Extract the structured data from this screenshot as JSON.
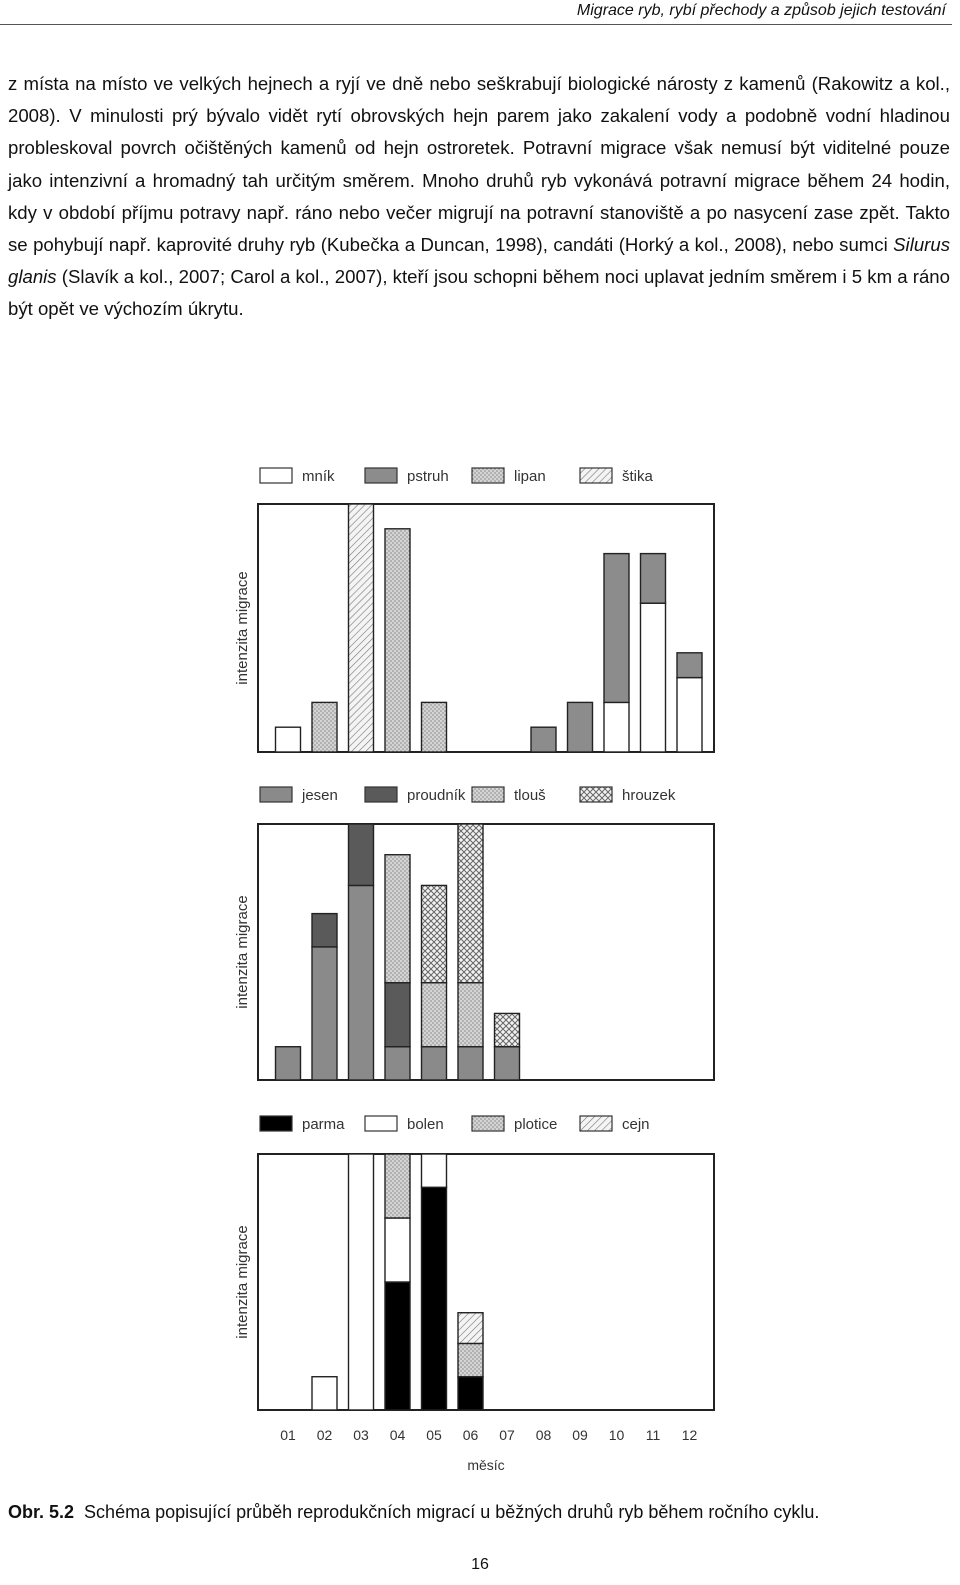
{
  "header": {
    "running_title": "Migrace ryb, rybí přechody a způsob jejich testování"
  },
  "body": {
    "para_start": "z místa na místo ve velkých hejnech a ryjí ve dně nebo seškrabují biologické nárosty z kamenů (Rakowitz a kol., 2008). V minulosti prý bývalo vidět rytí obrovských hejn parem jako zakalení vody a podobně vodní hladinou probleskoval povrch očištěných kamenů od hejn ostroretek. Potravní migrace však nemusí být viditelné pouze jako intenzivní a hromadný tah určitým směrem. Mnoho druhů ryb vykonává potravní migrace během 24 hodin, kdy v období příjmu potravy např. ráno nebo večer migrují na potravní stanoviště a po nasycení zase zpět. Takto se pohybují např. kaprovité druhy ryb (Kubečka a Duncan, 1998), candáti (Horký a kol., 2008), nebo sumci ",
    "species_italic": "Silurus glanis",
    "para_end": " (Slavík a kol., 2007; Carol a kol., 2007), kteří jsou schopni během noci uplavat jedním směrem i 5 km a ráno být opět ve výchozím úkrytu."
  },
  "chart_data": [
    {
      "type": "bar",
      "stacked": true,
      "ylabel": "intenzita migrace",
      "categories": [
        "01",
        "02",
        "03",
        "04",
        "05",
        "06",
        "07",
        "08",
        "09",
        "10",
        "11",
        "12"
      ],
      "legend": [
        "mník",
        "pstruh",
        "lipan",
        "štika"
      ],
      "series": [
        {
          "name": "mník",
          "values": [
            0.1,
            0,
            0,
            0,
            0,
            0,
            0,
            0,
            0,
            0.2,
            0.6,
            0.3
          ]
        },
        {
          "name": "pstruh",
          "values": [
            0,
            0,
            0,
            0,
            0,
            0,
            0,
            0.1,
            0.2,
            0.6,
            0.2,
            0.1
          ]
        },
        {
          "name": "lipan",
          "values": [
            0,
            0.2,
            0,
            0.9,
            0.2,
            0,
            0,
            0,
            0,
            0,
            0,
            0
          ]
        },
        {
          "name": "štika",
          "values": [
            0,
            0,
            1.0,
            0,
            0,
            0,
            0,
            0,
            0,
            0,
            0,
            0
          ]
        }
      ],
      "legend_placement": "top",
      "grid": false
    },
    {
      "type": "bar",
      "stacked": true,
      "ylabel": "intenzita migrace",
      "categories": [
        "01",
        "02",
        "03",
        "04",
        "05",
        "06",
        "07",
        "08",
        "09",
        "10",
        "11",
        "12"
      ],
      "legend": [
        "jesen",
        "proudník",
        "tlouš",
        "hrouzek"
      ],
      "series": [
        {
          "name": "jesen",
          "values": [
            0.13,
            0.52,
            0.76,
            0.13,
            0.13,
            0.13,
            0.13,
            0,
            0,
            0,
            0,
            0
          ]
        },
        {
          "name": "proudník",
          "values": [
            0,
            0.13,
            0.24,
            0.25,
            0,
            0,
            0,
            0,
            0,
            0,
            0,
            0
          ]
        },
        {
          "name": "tlouš",
          "values": [
            0,
            0,
            0,
            0.5,
            0.25,
            0.25,
            0,
            0,
            0,
            0,
            0,
            0
          ]
        },
        {
          "name": "hrouzek",
          "values": [
            0,
            0,
            0,
            0,
            0.38,
            0.62,
            0.13,
            0,
            0,
            0,
            0,
            0
          ]
        }
      ],
      "legend_placement": "top",
      "grid": false
    },
    {
      "type": "bar",
      "stacked": true,
      "ylabel": "intenzita migrace",
      "xlabel": "měsíc",
      "categories": [
        "01",
        "02",
        "03",
        "04",
        "05",
        "06",
        "07",
        "08",
        "09",
        "10",
        "11",
        "12"
      ],
      "legend": [
        "parma",
        "bolen",
        "plotice",
        "cejn"
      ],
      "series": [
        {
          "name": "parma",
          "values": [
            0,
            0,
            0,
            0.5,
            0.87,
            0.13,
            0,
            0,
            0,
            0,
            0,
            0
          ]
        },
        {
          "name": "bolen",
          "values": [
            0,
            0.13,
            1.0,
            0.25,
            0.13,
            0,
            0,
            0,
            0,
            0,
            0,
            0
          ]
        },
        {
          "name": "plotice",
          "values": [
            0,
            0,
            0,
            0.25,
            0,
            0.13,
            0,
            0,
            0,
            0,
            0,
            0
          ]
        },
        {
          "name": "cejn",
          "values": [
            0,
            0,
            0,
            0,
            0,
            0.12,
            0,
            0,
            0,
            0,
            0,
            0
          ]
        }
      ],
      "legend_placement": "top",
      "grid": false
    }
  ],
  "figure_styles": {
    "fills": [
      "#ffffff",
      "#8c8c8c",
      "#c8c8c8",
      "#ffffff",
      "#8a8a8a",
      "#5a5a5a",
      "#b4b4b4",
      "#ffffff",
      "#000000",
      "#ffffff",
      "#c8c8c8",
      "#ffffff"
    ],
    "patterns": [
      "none",
      "none",
      "dots",
      "hatch",
      "none",
      "none",
      "dots",
      "cross",
      "none",
      "none",
      "dots",
      "hatch"
    ]
  },
  "caption": {
    "label": "Obr. 5.2",
    "text": "Schéma popisující průběh reprodukčních migrací u běžných druhů ryb během ročního cyklu."
  },
  "page_number": "16"
}
